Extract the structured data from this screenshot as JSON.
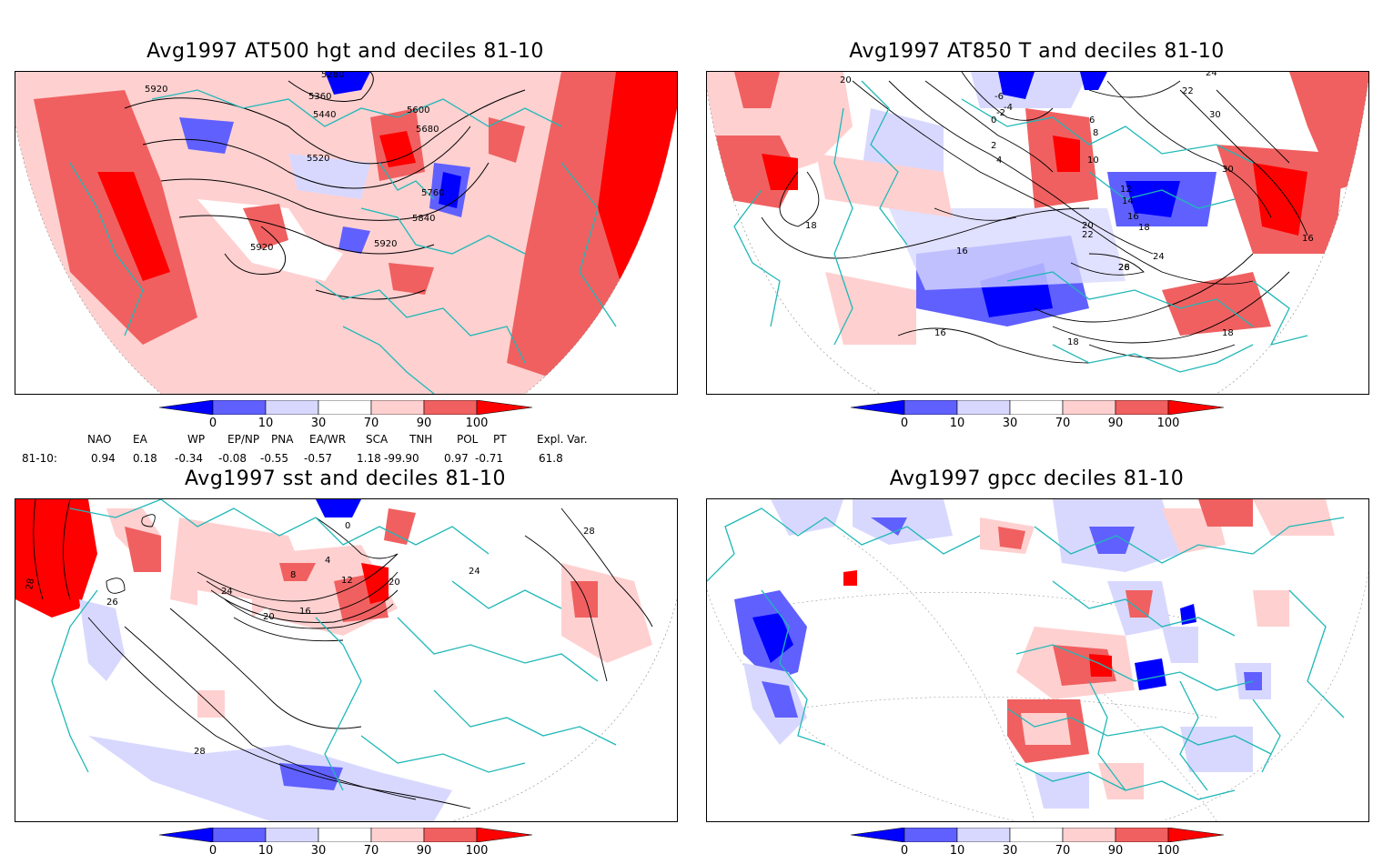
{
  "panels": [
    {
      "title": "Avg1997 AT500 hgt and deciles 81-10",
      "contour_labels": [
        "5920",
        "5280",
        "5360",
        "5440",
        "5520",
        "5600",
        "5680",
        "5760",
        "5840",
        "5920",
        "5920"
      ]
    },
    {
      "title": "Avg1997 AT850 T and deciles 81-10",
      "contour_labels": [
        "20",
        "-6",
        "-4",
        "-2",
        "0",
        "2",
        "4",
        "6",
        "8",
        "10",
        "12",
        "14",
        "16",
        "18",
        "20",
        "22",
        "24",
        "26",
        "28",
        "30",
        "30",
        "24",
        "22",
        "18",
        "16",
        "16",
        "18",
        "16",
        "18"
      ]
    },
    {
      "title": "Avg1997 sst and deciles 81-10",
      "contour_labels": [
        "28",
        "26",
        "24",
        "20",
        "16",
        "12",
        "8",
        "4",
        "0",
        "20",
        "28",
        "24",
        "28"
      ]
    },
    {
      "title": "Avg1997 gpcc deciles 81-10",
      "contour_labels": []
    }
  ],
  "colorbar": {
    "ticks": [
      "0",
      "10",
      "30",
      "70",
      "90",
      "100"
    ],
    "colors": [
      "#0000ff",
      "#6060ff",
      "#d8d8ff",
      "#ffffff",
      "#ffd0d0",
      "#f06060",
      "#ff0000"
    ]
  },
  "indices": {
    "headers": [
      "NAO",
      "EA",
      "WP",
      "EP/NP",
      "PNA",
      "EA/WR",
      "SCA",
      "TNH",
      "POL",
      "PT",
      "Expl. Var."
    ],
    "row_label": "81-10:",
    "values": [
      "0.94",
      "0.18",
      "-0.34",
      "-0.08",
      "-0.55",
      "-0.57",
      "1.18",
      "-99.90",
      "0.97",
      "-0.71",
      "61.8"
    ]
  },
  "colors": {
    "coast": "#20b8b8",
    "high": "#ff0000",
    "low": "#0000ff"
  }
}
